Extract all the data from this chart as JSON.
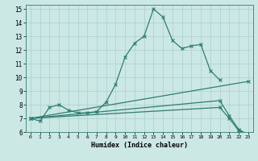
{
  "xlabel": "Humidex (Indice chaleur)",
  "line_color": "#2e7d72",
  "bg_color": "#cce8e5",
  "grid_color": "#aacfcc",
  "xlim": [
    -0.5,
    23.5
  ],
  "ylim": [
    6,
    15.3
  ],
  "xticks": [
    0,
    1,
    2,
    3,
    4,
    5,
    6,
    7,
    8,
    9,
    10,
    11,
    12,
    13,
    14,
    15,
    16,
    17,
    18,
    19,
    20,
    21,
    22,
    23
  ],
  "yticks": [
    6,
    7,
    8,
    9,
    10,
    11,
    12,
    13,
    14,
    15
  ],
  "lines": [
    {
      "x": [
        0,
        1,
        2,
        3,
        4,
        5,
        6,
        7,
        8,
        9,
        10,
        11,
        12,
        13,
        14,
        15,
        16,
        17,
        18,
        19,
        20
      ],
      "y": [
        7.0,
        6.8,
        7.8,
        8.0,
        7.6,
        7.4,
        7.4,
        7.5,
        8.2,
        9.5,
        11.5,
        12.5,
        13.0,
        15.0,
        14.4,
        12.7,
        12.1,
        12.3,
        12.4,
        10.5,
        9.8
      ]
    },
    {
      "x": [
        0,
        23
      ],
      "y": [
        7.0,
        9.7
      ]
    },
    {
      "x": [
        0,
        20,
        21,
        22,
        23
      ],
      "y": [
        7.0,
        8.3,
        7.2,
        6.2,
        5.8
      ]
    },
    {
      "x": [
        0,
        20,
        21,
        22,
        23
      ],
      "y": [
        7.0,
        7.8,
        7.0,
        6.1,
        5.8
      ]
    }
  ]
}
